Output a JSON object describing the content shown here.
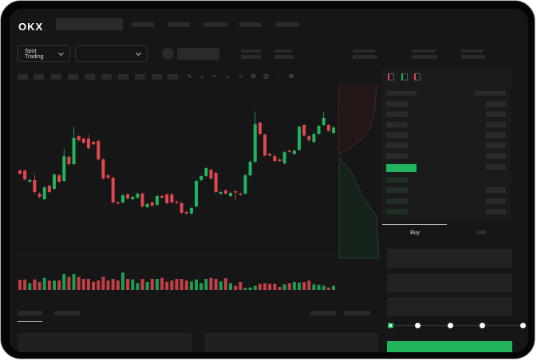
{
  "header": {
    "logo": "OKX"
  },
  "market": {
    "mode_label": "Spot Trading",
    "pair_select": ""
  },
  "order_form": {
    "buy_tab": "Buy",
    "sell_tab": "Sell",
    "slider_percent": 0
  },
  "colors": {
    "up": "#22b45d",
    "down": "#e0484f",
    "background": "#161616"
  },
  "icons": [
    "chevron-down-icon",
    "orderbook-both-icon",
    "orderbook-buy-icon",
    "orderbook-sell-icon"
  ],
  "chart_data": {
    "type": "candlestick",
    "candles": [
      [
        97,
        93
      ],
      [
        97,
        86
      ],
      [
        83,
        85
      ],
      [
        85,
        70,
        92,
        68
      ],
      [
        68,
        64
      ],
      [
        61,
        76
      ],
      [
        78,
        70
      ],
      [
        74,
        92
      ],
      [
        91,
        83
      ],
      [
        84,
        115,
        124
      ],
      [
        114,
        105
      ],
      [
        105,
        138,
        152
      ],
      [
        140,
        135
      ],
      [
        137,
        132
      ],
      [
        137,
        125,
        142
      ],
      [
        133,
        130
      ],
      [
        134,
        111
      ],
      [
        111,
        87
      ],
      [
        91,
        88
      ],
      [
        88,
        57
      ],
      [
        57,
        56
      ],
      [
        57,
        66
      ],
      [
        67,
        62
      ],
      [
        61,
        64
      ],
      [
        63,
        68
      ],
      [
        68,
        52
      ],
      [
        51,
        55
      ],
      [
        57,
        53
      ],
      [
        54,
        65
      ],
      [
        65,
        63
      ],
      [
        67,
        56
      ],
      [
        67,
        57
      ],
      [
        58,
        57
      ],
      [
        56,
        44
      ],
      [
        45,
        43
      ],
      [
        43,
        50
      ],
      [
        52,
        84
      ],
      [
        85,
        90
      ],
      [
        90,
        100
      ],
      [
        98,
        87
      ],
      [
        94,
        70
      ],
      [
        68,
        70
      ],
      [
        72,
        68
      ],
      [
        65,
        69
      ],
      [
        71,
        70,
        72,
        60
      ],
      [
        68,
        67
      ],
      [
        68,
        91
      ],
      [
        91,
        108
      ],
      [
        108,
        155,
        171
      ],
      [
        157,
        143
      ],
      [
        142,
        116
      ],
      [
        118,
        116
      ],
      [
        115,
        109
      ],
      [
        111,
        109
      ],
      [
        106,
        120
      ],
      [
        122,
        121
      ],
      [
        118,
        122
      ],
      [
        123,
        152
      ],
      [
        154,
        141
      ],
      [
        140,
        135
      ],
      [
        133,
        143
      ],
      [
        143,
        153
      ],
      [
        154,
        163,
        170
      ],
      [
        154,
        147
      ],
      [
        144,
        151
      ]
    ],
    "volume": [
      38,
      40,
      26,
      40,
      30,
      46,
      36,
      36,
      36,
      60,
      50,
      60,
      50,
      42,
      42,
      31,
      36,
      50,
      36,
      42,
      36,
      66,
      42,
      40,
      26,
      42,
      30,
      42,
      42,
      46,
      31,
      36,
      42,
      42,
      36,
      32,
      40,
      26,
      42,
      46,
      42,
      32,
      44,
      26,
      16,
      30,
      8,
      10,
      16,
      24,
      26,
      24,
      24,
      12,
      22,
      26,
      30,
      28,
      30,
      36,
      22,
      20,
      16,
      10,
      16
    ]
  }
}
